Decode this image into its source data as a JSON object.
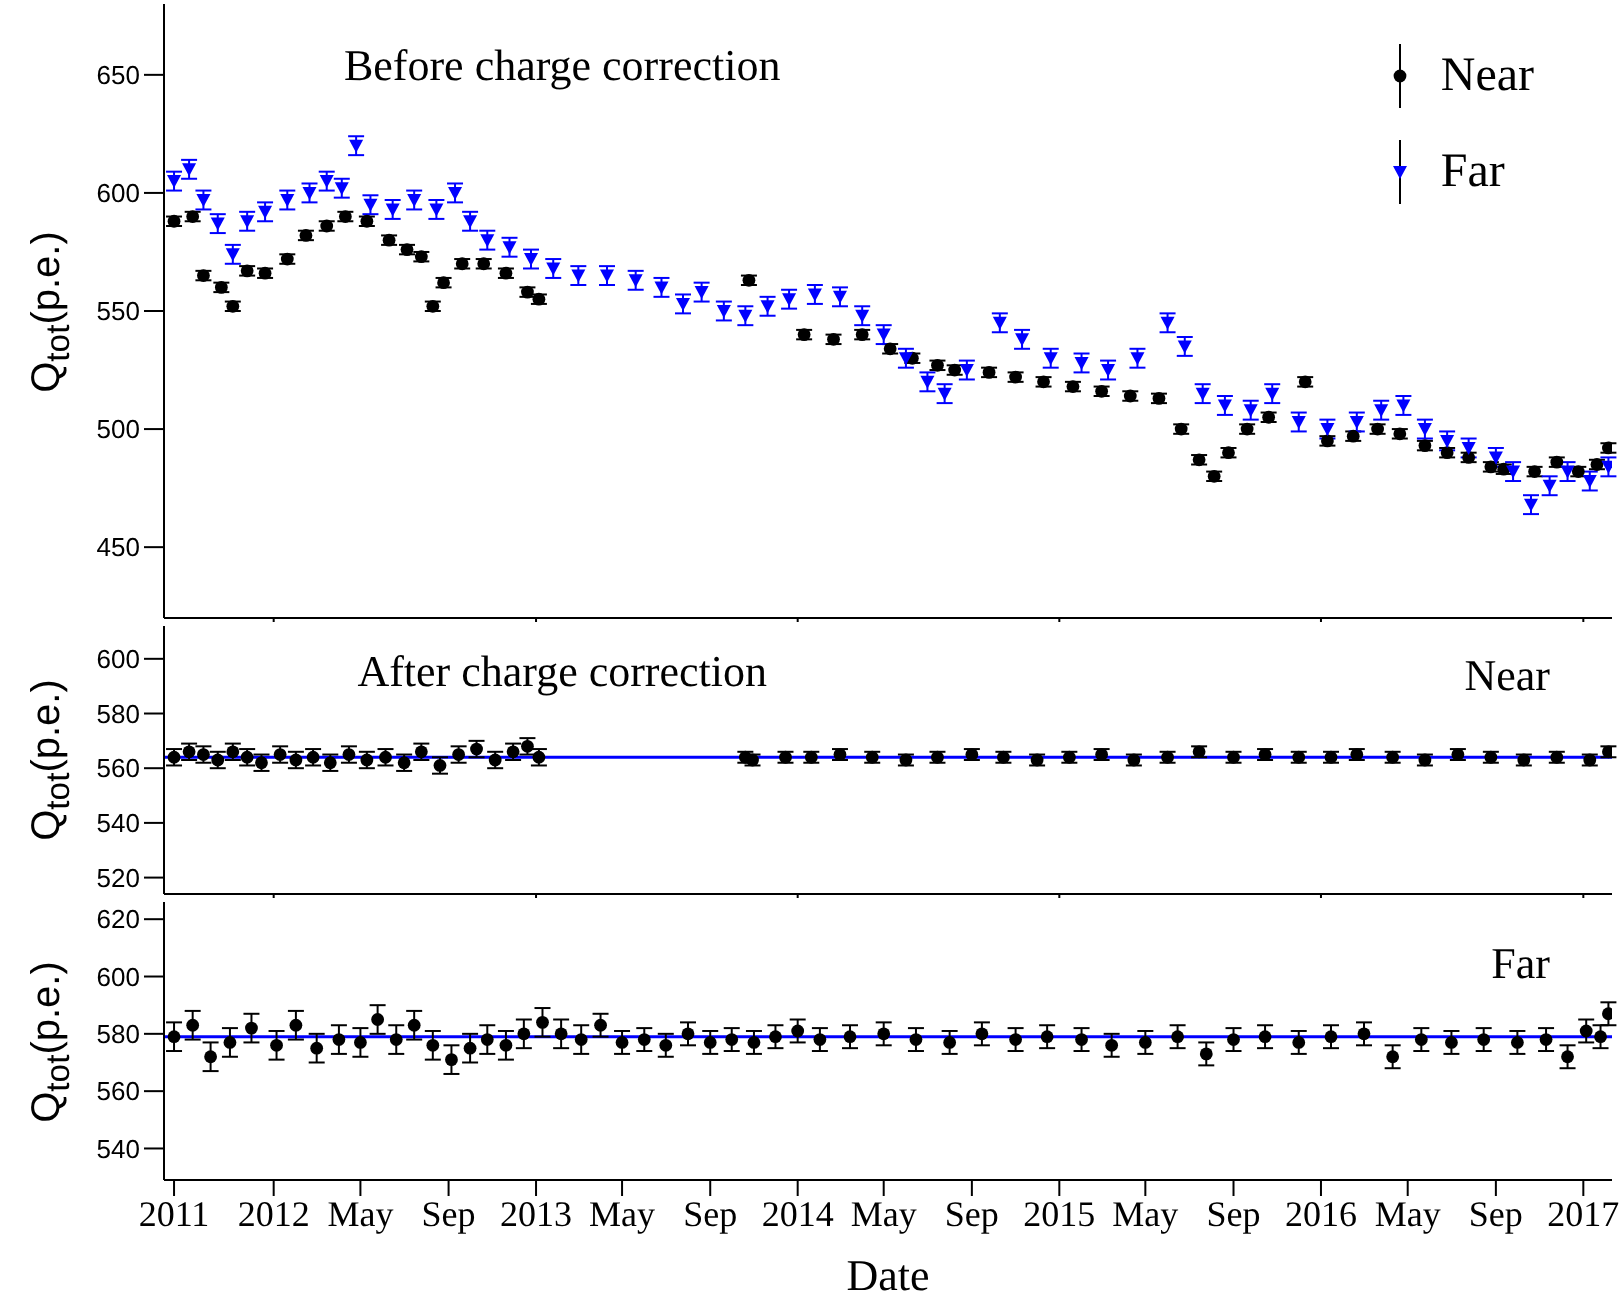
{
  "chart_data": [
    {
      "type": "scatter",
      "title": "Before charge correction",
      "ylabel": "Q$_{tot}$(p.e.)",
      "legend": "top right",
      "tick_labels": "y",
      "xlim": [
        "2011-08-01",
        "2017-02-10"
      ],
      "xticks": [
        {
          "value": "2012-01-01",
          "label": null
        },
        {
          "value": "2013-01-01",
          "label": null
        },
        {
          "value": "2014-01-01",
          "label": null
        },
        {
          "value": "2015-01-01",
          "label": null
        },
        {
          "value": "2016-01-01",
          "label": null
        },
        {
          "value": "2017-01-01",
          "label": null
        }
      ],
      "ylim": [
        420,
        680
      ],
      "yticks": [
        450,
        500,
        550,
        600,
        650
      ],
      "series": [
        {
          "name": "Near",
          "color": "#000000",
          "marker": "circle",
          "x": [
            "2011-08-15",
            "2011-09-10",
            "2011-09-25",
            "2011-10-20",
            "2011-11-05",
            "2011-11-25",
            "2011-12-20",
            "2012-01-20",
            "2012-02-15",
            "2012-03-15",
            "2012-04-10",
            "2012-05-10",
            "2012-06-10",
            "2012-07-05",
            "2012-07-25",
            "2012-08-10",
            "2012-08-25",
            "2012-09-20",
            "2012-10-20",
            "2012-11-20",
            "2012-12-20",
            "2013-01-05",
            "2013-10-25",
            "2014-01-10",
            "2014-02-20",
            "2014-04-01",
            "2014-05-10",
            "2014-06-10",
            "2014-07-15",
            "2014-08-08",
            "2014-09-25",
            "2014-11-01",
            "2014-12-10",
            "2015-01-20",
            "2015-03-01",
            "2015-04-10",
            "2015-05-20",
            "2015-06-20",
            "2015-07-15",
            "2015-08-05",
            "2015-08-25",
            "2015-09-20",
            "2015-10-20",
            "2015-12-10",
            "2016-01-10",
            "2016-02-15",
            "2016-03-20",
            "2016-04-20",
            "2016-05-25",
            "2016-06-25",
            "2016-07-25",
            "2016-08-25",
            "2016-09-12",
            "2016-10-25",
            "2016-11-25",
            "2016-12-25",
            "2017-01-20",
            "2017-02-05"
          ],
          "values": [
            588,
            590,
            565,
            560,
            552,
            567,
            566,
            572,
            582,
            586,
            590,
            588,
            580,
            576,
            573,
            552,
            562,
            570,
            570,
            566,
            558,
            555,
            563,
            540,
            538,
            540,
            534,
            530,
            527,
            525,
            524,
            522,
            520,
            518,
            516,
            514,
            513,
            500,
            487,
            480,
            490,
            500,
            505,
            520,
            495,
            497,
            500,
            498,
            493,
            490,
            488,
            484,
            483,
            482,
            486,
            482,
            485,
            492
          ],
          "errors": [
            2,
            2,
            2,
            2,
            2,
            2,
            2,
            2,
            2,
            2,
            2,
            2,
            2,
            2,
            2,
            2,
            2,
            2,
            2,
            2,
            2,
            2,
            2,
            2,
            2,
            2,
            2,
            2,
            2,
            2,
            2,
            2,
            2,
            2,
            2,
            2,
            2,
            2,
            2,
            2,
            2,
            2,
            2,
            2,
            2,
            2,
            2,
            2,
            2,
            2,
            2,
            2,
            2,
            2,
            2,
            2,
            2,
            2
          ]
        },
        {
          "name": "Far",
          "color": "#0000ff",
          "marker": "triangle",
          "x": [
            "2011-08-15",
            "2011-09-05",
            "2011-09-25",
            "2011-10-15",
            "2011-11-05",
            "2011-11-25",
            "2011-12-20",
            "2012-01-20",
            "2012-02-20",
            "2012-03-15",
            "2012-04-05",
            "2012-04-25",
            "2012-05-15",
            "2012-06-15",
            "2012-07-15",
            "2012-08-15",
            "2012-09-10",
            "2012-10-01",
            "2012-10-25",
            "2012-11-25",
            "2012-12-25",
            "2013-01-25",
            "2013-03-01",
            "2013-04-10",
            "2013-05-20",
            "2013-06-25",
            "2013-07-25",
            "2013-08-20",
            "2013-09-20",
            "2013-10-20",
            "2013-11-20",
            "2013-12-20",
            "2014-01-25",
            "2014-03-01",
            "2014-04-01",
            "2014-05-01",
            "2014-06-01",
            "2014-07-01",
            "2014-07-25",
            "2014-08-25",
            "2014-10-10",
            "2014-11-10",
            "2014-12-20",
            "2015-02-01",
            "2015-03-10",
            "2015-04-20",
            "2015-06-01",
            "2015-06-25",
            "2015-07-20",
            "2015-08-20",
            "2015-09-25",
            "2015-10-25",
            "2015-12-01",
            "2016-01-10",
            "2016-02-20",
            "2016-03-25",
            "2016-04-25",
            "2016-05-25",
            "2016-06-25",
            "2016-07-25",
            "2016-09-01",
            "2016-09-25",
            "2016-10-20",
            "2016-11-15",
            "2016-12-10",
            "2017-01-10",
            "2017-02-05"
          ],
          "values": [
            605,
            610,
            597,
            587,
            574,
            588,
            592,
            597,
            600,
            605,
            602,
            620,
            595,
            593,
            597,
            593,
            600,
            588,
            580,
            577,
            572,
            568,
            565,
            565,
            563,
            560,
            553,
            558,
            550,
            548,
            552,
            555,
            557,
            556,
            548,
            540,
            530,
            520,
            515,
            525,
            545,
            538,
            530,
            528,
            525,
            530,
            545,
            535,
            515,
            510,
            508,
            515,
            503,
            500,
            503,
            508,
            510,
            500,
            495,
            492,
            488,
            482,
            468,
            476,
            482,
            478,
            484
          ],
          "errors": [
            4,
            4,
            4,
            4,
            4,
            4,
            4,
            4,
            4,
            4,
            4,
            4,
            4,
            4,
            4,
            4,
            4,
            4,
            4,
            4,
            4,
            4,
            4,
            4,
            4,
            4,
            4,
            4,
            4,
            4,
            4,
            4,
            4,
            4,
            4,
            4,
            4,
            4,
            4,
            4,
            4,
            4,
            4,
            4,
            4,
            4,
            4,
            4,
            4,
            4,
            4,
            4,
            4,
            4,
            4,
            4,
            4,
            4,
            4,
            4,
            4,
            4,
            4,
            4,
            4,
            4,
            4
          ]
        }
      ]
    },
    {
      "type": "scatter",
      "title": "After charge correction",
      "ylabel": "Q$_{tot}$(p.e.)",
      "annotations": [
        "Near"
      ],
      "tick_labels": "y",
      "xlim": [
        "2011-08-01",
        "2017-02-10"
      ],
      "xticks": [
        {
          "value": "2012-01-01",
          "label": null
        },
        {
          "value": "2013-01-01",
          "label": null
        },
        {
          "value": "2014-01-01",
          "label": null
        },
        {
          "value": "2015-01-01",
          "label": null
        },
        {
          "value": "2016-01-01",
          "label": null
        },
        {
          "value": "2017-01-01",
          "label": null
        }
      ],
      "ylim": [
        514,
        612
      ],
      "yticks": [
        520,
        540,
        560,
        580,
        600
      ],
      "ref_lines": [
        {
          "axis": "y",
          "value": 564,
          "color": "#0000ff"
        }
      ],
      "series": [
        {
          "color": "#000000",
          "marker": "circle",
          "x": [
            "2011-08-15",
            "2011-09-05",
            "2011-09-25",
            "2011-10-15",
            "2011-11-05",
            "2011-11-25",
            "2011-12-15",
            "2012-01-10",
            "2012-02-01",
            "2012-02-25",
            "2012-03-20",
            "2012-04-15",
            "2012-05-10",
            "2012-06-05",
            "2012-07-01",
            "2012-07-25",
            "2012-08-20",
            "2012-09-15",
            "2012-10-10",
            "2012-11-05",
            "2012-11-30",
            "2012-12-20",
            "2013-01-05",
            "2013-10-20",
            "2013-10-30",
            "2013-12-15",
            "2014-01-20",
            "2014-03-01",
            "2014-04-15",
            "2014-06-01",
            "2014-07-15",
            "2014-09-01",
            "2014-10-15",
            "2014-12-01",
            "2015-01-15",
            "2015-03-01",
            "2015-04-15",
            "2015-06-01",
            "2015-07-15",
            "2015-09-01",
            "2015-10-15",
            "2015-12-01",
            "2016-01-15",
            "2016-02-20",
            "2016-04-10",
            "2016-05-25",
            "2016-07-10",
            "2016-08-25",
            "2016-10-10",
            "2016-11-25",
            "2017-01-10",
            "2017-02-05"
          ],
          "values": [
            564,
            566,
            565,
            563,
            566,
            564,
            562,
            565,
            563,
            564,
            562,
            565,
            563,
            564,
            562,
            566,
            561,
            565,
            567,
            563,
            566,
            568,
            564,
            564,
            563,
            564,
            564,
            565,
            564,
            563,
            564,
            565,
            564,
            563,
            564,
            565,
            563,
            564,
            566,
            564,
            565,
            564,
            564,
            565,
            564,
            563,
            565,
            564,
            563,
            564,
            563,
            566
          ],
          "errors": [
            3,
            3,
            3,
            3,
            3,
            3,
            3,
            3,
            3,
            3,
            3,
            3,
            3,
            3,
            3,
            3,
            3,
            3,
            3,
            3,
            3,
            3,
            3,
            2,
            2,
            2,
            2,
            2,
            2,
            2,
            2,
            2,
            2,
            2,
            2,
            2,
            2,
            2,
            2,
            2,
            2,
            2,
            2,
            2,
            2,
            2,
            2,
            2,
            2,
            2,
            2,
            2
          ]
        }
      ]
    },
    {
      "type": "scatter",
      "ylabel": "Q$_{tot}$(p.e.)",
      "xlabel": "Date",
      "annotations": [
        "Far"
      ],
      "xlim": [
        "2011-08-01",
        "2017-02-10"
      ],
      "xticks": [
        {
          "value": "2011-08-15",
          "label": "2011"
        },
        {
          "value": "2012-01-01",
          "label": "2012"
        },
        {
          "value": "2012-05-01",
          "label": "May"
        },
        {
          "value": "2012-09-01",
          "label": "Sep"
        },
        {
          "value": "2013-01-01",
          "label": "2013"
        },
        {
          "value": "2013-05-01",
          "label": "May"
        },
        {
          "value": "2013-09-01",
          "label": "Sep"
        },
        {
          "value": "2014-01-01",
          "label": "2014"
        },
        {
          "value": "2014-05-01",
          "label": "May"
        },
        {
          "value": "2014-09-01",
          "label": "Sep"
        },
        {
          "value": "2015-01-01",
          "label": "2015"
        },
        {
          "value": "2015-05-01",
          "label": "May"
        },
        {
          "value": "2015-09-01",
          "label": "Sep"
        },
        {
          "value": "2016-01-01",
          "label": "2016"
        },
        {
          "value": "2016-05-01",
          "label": "May"
        },
        {
          "value": "2016-09-01",
          "label": "Sep"
        },
        {
          "value": "2017-01-01",
          "label": "2017"
        }
      ],
      "ylim": [
        529,
        626
      ],
      "yticks": [
        540,
        560,
        580,
        600,
        620
      ],
      "ref_lines": [
        {
          "axis": "y",
          "value": 579,
          "color": "#0000ff"
        }
      ],
      "series": [
        {
          "color": "#000000",
          "marker": "circle",
          "x": [
            "2011-08-15",
            "2011-09-10",
            "2011-10-05",
            "2011-11-01",
            "2011-12-01",
            "2012-01-05",
            "2012-02-01",
            "2012-03-01",
            "2012-04-01",
            "2012-05-01",
            "2012-05-25",
            "2012-06-20",
            "2012-07-15",
            "2012-08-10",
            "2012-09-05",
            "2012-10-01",
            "2012-10-25",
            "2012-11-20",
            "2012-12-15",
            "2013-01-10",
            "2013-02-05",
            "2013-03-05",
            "2013-04-01",
            "2013-05-01",
            "2013-06-01",
            "2013-07-01",
            "2013-08-01",
            "2013-09-01",
            "2013-10-01",
            "2013-11-01",
            "2013-12-01",
            "2014-01-01",
            "2014-02-01",
            "2014-03-15",
            "2014-05-01",
            "2014-06-15",
            "2014-08-01",
            "2014-09-15",
            "2014-11-01",
            "2014-12-15",
            "2015-02-01",
            "2015-03-15",
            "2015-05-01",
            "2015-06-15",
            "2015-07-25",
            "2015-09-01",
            "2015-10-15",
            "2015-12-01",
            "2016-01-15",
            "2016-03-01",
            "2016-04-10",
            "2016-05-20",
            "2016-07-01",
            "2016-08-15",
            "2016-10-01",
            "2016-11-10",
            "2016-12-10",
            "2017-01-05",
            "2017-01-25",
            "2017-02-05"
          ],
          "values": [
            579,
            583,
            572,
            577,
            582,
            576,
            583,
            575,
            578,
            577,
            585,
            578,
            583,
            576,
            571,
            575,
            578,
            576,
            580,
            584,
            580,
            578,
            583,
            577,
            578,
            576,
            580,
            577,
            578,
            577,
            579,
            581,
            578,
            579,
            580,
            578,
            577,
            580,
            578,
            579,
            578,
            576,
            577,
            579,
            573,
            578,
            579,
            577,
            579,
            580,
            572,
            578,
            577,
            578,
            577,
            578,
            572,
            581,
            579,
            587
          ],
          "errors": [
            5,
            5,
            5,
            5,
            5,
            5,
            5,
            5,
            5,
            5,
            5,
            5,
            5,
            5,
            5,
            5,
            5,
            5,
            5,
            5,
            5,
            5,
            4,
            4,
            4,
            4,
            4,
            4,
            4,
            4,
            4,
            4,
            4,
            4,
            4,
            4,
            4,
            4,
            4,
            4,
            4,
            4,
            4,
            4,
            4,
            4,
            4,
            4,
            4,
            4,
            4,
            4,
            4,
            4,
            4,
            4,
            4,
            4,
            4,
            4
          ]
        }
      ]
    }
  ]
}
